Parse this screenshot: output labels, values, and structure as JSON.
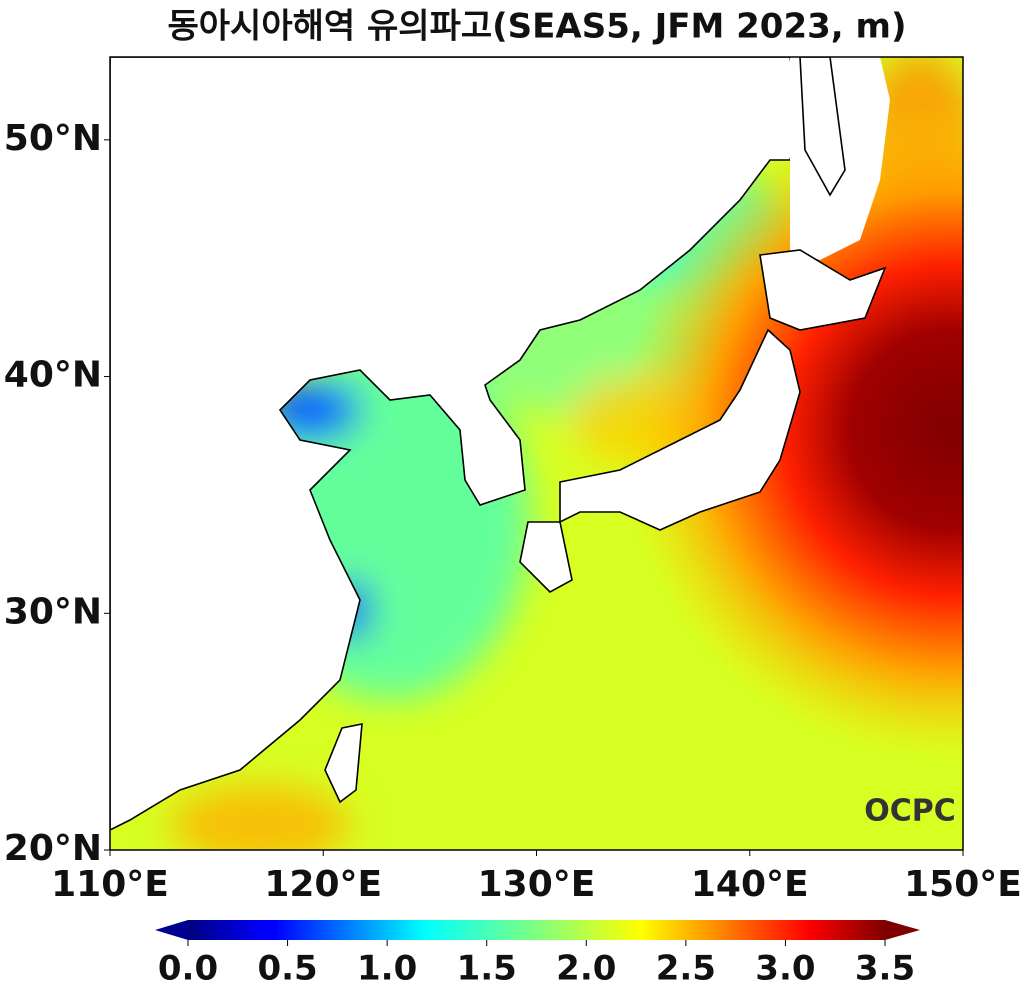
{
  "chart_data": {
    "type": "map",
    "title": "동아시아해역 유의파고(SEAS5, JFM 2023, m)",
    "xlim": [
      110,
      150
    ],
    "ylim": [
      20,
      53.5
    ],
    "xticks": [
      {
        "value": 110,
        "label": "110°E"
      },
      {
        "value": 120,
        "label": "120°E"
      },
      {
        "value": 130,
        "label": "130°E"
      },
      {
        "value": 140,
        "label": "140°E"
      },
      {
        "value": 150,
        "label": "150°E"
      }
    ],
    "yticks": [
      {
        "value": 20,
        "label": "20°N"
      },
      {
        "value": 30,
        "label": "30°N"
      },
      {
        "value": 40,
        "label": "40°N"
      },
      {
        "value": 50,
        "label": "50°N"
      }
    ],
    "colorbar": {
      "colormap": "jet",
      "range": [
        0,
        3.5
      ],
      "ticks": [
        {
          "value": 0,
          "label": "0.0"
        },
        0.5,
        {
          "value": 1,
          "label": "1.0"
        },
        1.5,
        {
          "value": 2,
          "label": "2.0"
        },
        2.5,
        {
          "value": 3,
          "label": "3.0"
        },
        3.5
      ]
    },
    "watermark": "OCPC"
  }
}
